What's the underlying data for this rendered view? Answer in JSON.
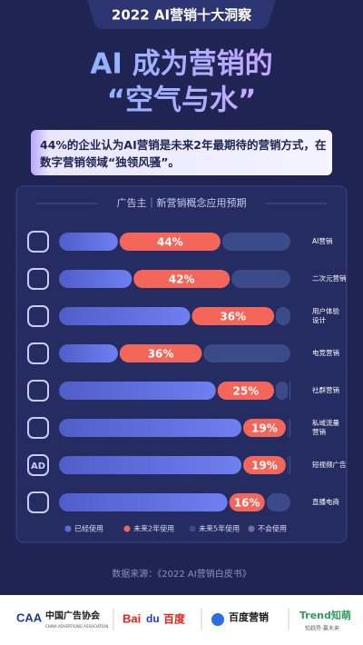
{
  "header": {
    "tag": "2022 AI营销十大洞察",
    "title_lines": [
      "AI 成为营销的",
      "“空气与水”"
    ],
    "callout": "44%的企业认为AI营销是未来2年最期待的营销方式，在数字营销领域“独领风骚”。"
  },
  "chart_data": {
    "type": "bar",
    "orientation": "horizontal",
    "stacked": true,
    "title": "广告主｜新营销概念应用预期",
    "categories": [
      "AI营销",
      "二次元营销",
      "用户体验设计",
      "电竞营销",
      "社群营销",
      "私域流量营销",
      "短视频广告",
      "直播电商"
    ],
    "ad_icon_text": "AD",
    "xlim": [
      0,
      100
    ],
    "series": [
      {
        "name": "已经使用",
        "color": "#5a6ad8",
        "values": [
          26,
          32,
          57,
          26,
          68,
          79,
          79,
          73
        ]
      },
      {
        "name": "未来2年使用",
        "color": "#f4665a",
        "values": [
          44,
          42,
          36,
          36,
          25,
          19,
          19,
          16
        ],
        "value_labels": [
          "44%",
          "42%",
          "36%",
          "36%",
          "25%",
          "19%",
          "19%",
          "16%"
        ]
      },
      {
        "name": "未来5年使用",
        "color": "#3b4b8a",
        "values": [
          30,
          26,
          7,
          38,
          6,
          1,
          1,
          11
        ]
      },
      {
        "name": "不会使用",
        "color": "#6b7399",
        "values": [
          0,
          0,
          0,
          0,
          1,
          1,
          1,
          0
        ]
      }
    ],
    "legend": "bottom",
    "source": "数据来源：《2022 AI营销白皮书》"
  },
  "footer": {
    "logos": [
      "中国广告协会",
      "CHINA ADVERTISING ASSOCIATION",
      "Bai",
      "du",
      "百度",
      "百度营销",
      "Trend知萌",
      "知趋势·赢未来"
    ]
  }
}
